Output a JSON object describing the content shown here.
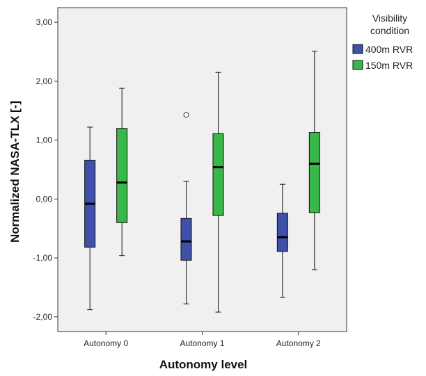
{
  "chart_data": {
    "type": "boxplot",
    "xlabel": "Autonomy level",
    "ylabel": "Normalized NASA-TLX [-]",
    "ylim": [
      -2.25,
      3.25
    ],
    "yticks": [
      {
        "value": -2,
        "label": "-2,00"
      },
      {
        "value": -1,
        "label": "-1,00"
      },
      {
        "value": 0,
        "label": "0,00"
      },
      {
        "value": 1,
        "label": "1,00"
      },
      {
        "value": 2,
        "label": "2,00"
      },
      {
        "value": 3,
        "label": "3,00"
      }
    ],
    "categories": [
      "Autonomy 0",
      "Autonomy 1",
      "Autonomy 2"
    ],
    "legend": {
      "title_lines": [
        "Visibility",
        "condition"
      ],
      "placement": "right"
    },
    "series": [
      {
        "name": "400m RVR",
        "color": "#3f4faa",
        "boxes": [
          {
            "min": -1.88,
            "q1": -0.82,
            "median": -0.08,
            "q3": 0.66,
            "max": 1.22,
            "outliers": []
          },
          {
            "min": -1.78,
            "q1": -1.04,
            "median": -0.72,
            "q3": -0.33,
            "max": 0.3,
            "outliers": [
              1.43
            ]
          },
          {
            "min": -1.67,
            "q1": -0.89,
            "median": -0.65,
            "q3": -0.24,
            "max": 0.25,
            "outliers": []
          }
        ]
      },
      {
        "name": "150m RVR",
        "color": "#38b848",
        "boxes": [
          {
            "min": -0.96,
            "q1": -0.4,
            "median": 0.28,
            "q3": 1.2,
            "max": 1.88,
            "outliers": []
          },
          {
            "min": -1.92,
            "q1": -0.28,
            "median": 0.54,
            "q3": 1.11,
            "max": 2.15,
            "outliers": []
          },
          {
            "min": -1.2,
            "q1": -0.23,
            "median": 0.6,
            "q3": 1.13,
            "max": 2.51,
            "outliers": []
          }
        ]
      }
    ]
  }
}
